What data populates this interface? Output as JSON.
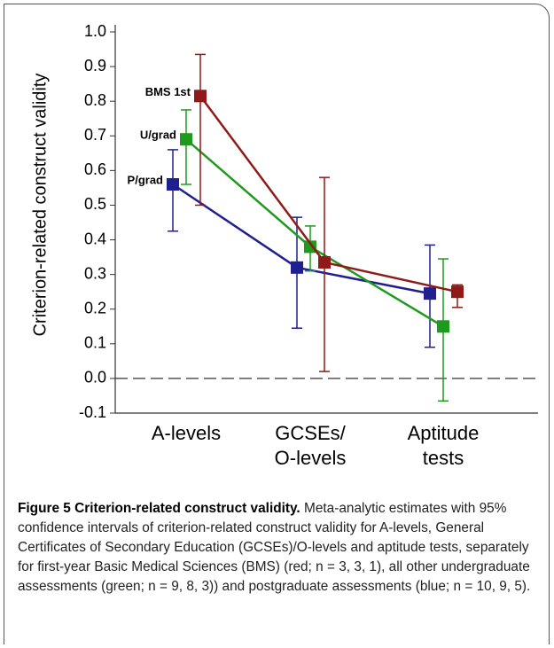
{
  "chart_data": {
    "type": "errorline",
    "y_label": "Criterion-related construct validity",
    "categories": [
      "A-levels",
      "GCSEs/\nO-levels",
      "Aptitude\ntests"
    ],
    "series": [
      {
        "name": "P/grad",
        "color": "#1f1f8f",
        "values": [
          0.56,
          0.32,
          0.245
        ],
        "lower": [
          0.425,
          0.145,
          0.09
        ],
        "upper": [
          0.66,
          0.465,
          0.385
        ]
      },
      {
        "name": "U/grad",
        "color": "#1e9a1e",
        "values": [
          0.69,
          0.38,
          0.15
        ],
        "lower": [
          0.56,
          0.31,
          -0.065
        ],
        "upper": [
          0.775,
          0.44,
          0.345
        ]
      },
      {
        "name": "BMS 1st",
        "color": "#8f1a1a",
        "values": [
          0.815,
          0.335,
          0.25
        ],
        "lower": [
          0.5,
          0.02,
          0.205
        ],
        "upper": [
          0.935,
          0.58,
          0.27
        ]
      }
    ],
    "ylim": [
      -0.1,
      1.0
    ],
    "yticks": [
      {
        "value": 1,
        "label": "1.0"
      },
      0.9,
      0.8,
      0.7,
      0.6,
      0.5,
      0.4,
      0.3,
      0.2,
      0.1,
      {
        "value": 0,
        "label": "0.0"
      },
      -0.1
    ],
    "reference_line": 0
  },
  "caption": {
    "label": "Figure 5 Criterion-related construct validity.",
    "text": "Meta-analytic estimates with 95% confidence intervals of criterion-related construct validity for A-levels, General Certificates of Secondary Education (GCSEs)/O-levels and aptitude tests, separately for first-year Basic Medical Sciences (BMS) (red; n = 3, 3, 1), all other undergraduate assessments (green; n = 9, 8, 3)) and postgraduate assessments (blue; n = 10, 9, 5)."
  }
}
